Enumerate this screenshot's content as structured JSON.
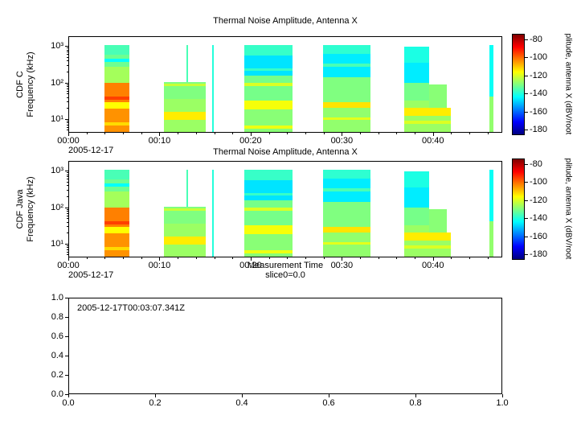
{
  "chart_data": [
    {
      "type": "heatmap",
      "title": "Thermal Noise Amplitude, Antenna X",
      "panels": [
        {
          "ylabel": "CDF C\nFrequency (kHz)"
        },
        {
          "ylabel": "CDF Java\nFrequency (kHz)"
        }
      ],
      "xlabel": "Measurement Time",
      "xlabel2": "slice0=0.0",
      "x": {
        "tick_labels": [
          "00:00",
          "00:10",
          "00:20",
          "00:30",
          "00:40"
        ],
        "tick_minutes": [
          0,
          10,
          20,
          30,
          40
        ],
        "range_minutes": [
          0,
          47.6
        ],
        "date": "2005-12-17"
      },
      "y": {
        "scale": "log",
        "tick_labels": [
          "10³",
          "10²",
          "10¹"
        ],
        "tick_log_values": [
          3,
          2,
          1
        ],
        "log_range": [
          0.62,
          3.27
        ],
        "unit": "kHz"
      },
      "colorbar": {
        "label": "plitude, antenna X (dBV/root",
        "tick_values": [
          -80,
          -100,
          -120,
          -140,
          -160,
          -180
        ],
        "value_range": [
          -186,
          -74
        ],
        "colormap": "jet"
      },
      "cells_format": [
        "t0_minutes",
        "t1_minutes",
        "log10_f0_kHz",
        "log10_f1_kHz",
        "amplitude_dB"
      ],
      "cells": [
        [
          3.9,
          6.6,
          2.78,
          3.05,
          -136
        ],
        [
          3.9,
          6.6,
          2.45,
          2.78,
          -132
        ],
        [
          3.9,
          6.6,
          2.58,
          2.66,
          -144
        ],
        [
          3.9,
          6.6,
          2.0,
          2.45,
          -126
        ],
        [
          3.9,
          6.6,
          1.45,
          2.0,
          -102
        ],
        [
          3.9,
          6.6,
          1.52,
          1.6,
          -95
        ],
        [
          3.9,
          6.6,
          1.28,
          1.45,
          -116
        ],
        [
          3.9,
          6.6,
          0.62,
          1.28,
          -104
        ],
        [
          3.9,
          6.6,
          0.8,
          0.88,
          -112
        ],
        [
          10.4,
          15.0,
          1.55,
          2.02,
          -130
        ],
        [
          10.4,
          15.0,
          1.9,
          1.97,
          -122
        ],
        [
          10.4,
          15.0,
          1.18,
          1.55,
          -127
        ],
        [
          10.4,
          15.0,
          0.95,
          1.18,
          -114
        ],
        [
          10.4,
          15.0,
          0.62,
          0.95,
          -127
        ],
        [
          12.9,
          13.08,
          2.02,
          3.05,
          -136
        ],
        [
          15.72,
          15.9,
          0.62,
          3.05,
          -140
        ],
        [
          19.3,
          24.6,
          2.75,
          3.05,
          -138
        ],
        [
          19.3,
          24.6,
          2.2,
          2.75,
          -147
        ],
        [
          19.3,
          24.6,
          2.33,
          2.4,
          -138
        ],
        [
          19.3,
          24.6,
          1.5,
          2.2,
          -131
        ],
        [
          19.3,
          24.6,
          1.9,
          1.98,
          -120
        ],
        [
          19.3,
          24.6,
          1.25,
          1.5,
          -117
        ],
        [
          19.3,
          24.6,
          0.62,
          1.25,
          -129
        ],
        [
          19.3,
          24.6,
          0.72,
          0.8,
          -118
        ],
        [
          28.0,
          33.2,
          2.8,
          3.05,
          -139
        ],
        [
          28.0,
          33.2,
          2.15,
          2.8,
          -146
        ],
        [
          28.0,
          33.2,
          2.45,
          2.52,
          -136
        ],
        [
          28.0,
          33.2,
          1.45,
          2.15,
          -130
        ],
        [
          28.0,
          33.2,
          1.3,
          1.45,
          -113
        ],
        [
          28.0,
          33.2,
          0.62,
          1.3,
          -128
        ],
        [
          28.0,
          33.2,
          0.95,
          1.03,
          -119
        ],
        [
          36.9,
          39.6,
          2.55,
          3.0,
          -141
        ],
        [
          36.9,
          39.6,
          2.0,
          2.55,
          -146
        ],
        [
          36.9,
          39.6,
          1.5,
          2.0,
          -131
        ],
        [
          39.6,
          41.6,
          1.3,
          1.95,
          -129
        ],
        [
          36.9,
          39.6,
          1.3,
          1.5,
          -127
        ],
        [
          36.9,
          42.0,
          1.08,
          1.3,
          -114
        ],
        [
          36.9,
          42.0,
          0.62,
          1.08,
          -127
        ],
        [
          36.9,
          42.0,
          0.85,
          0.93,
          -120
        ],
        [
          46.3,
          46.75,
          1.6,
          3.05,
          -143
        ],
        [
          46.3,
          46.75,
          0.62,
          1.6,
          -128
        ]
      ]
    },
    {
      "type": "empty",
      "annotation": "2005-12-17T00:03:07.341Z",
      "x_ticks": [
        0.0,
        0.2,
        0.4,
        0.6,
        0.8,
        1.0
      ],
      "y_ticks": [
        0.0,
        0.2,
        0.4,
        0.6,
        0.8,
        1.0
      ],
      "x_range": [
        0,
        1
      ],
      "y_range": [
        0,
        1
      ]
    }
  ]
}
